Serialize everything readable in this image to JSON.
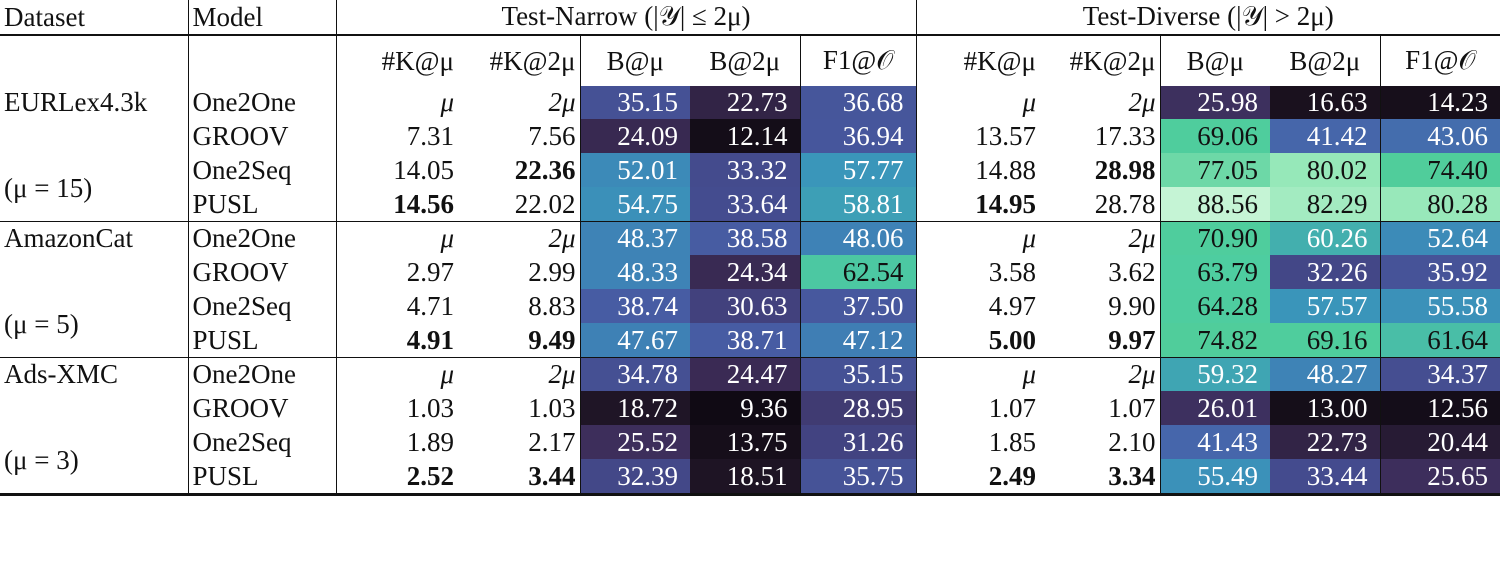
{
  "header": {
    "dataset": "Dataset",
    "model": "Model",
    "group_narrow": "Test-Narrow (|𝒴| ≤ 2μ)",
    "group_diverse": "Test-Diverse (|𝒴| > 2μ)",
    "columns": [
      "#K@μ",
      "#K@2μ",
      "B@μ",
      "B@2μ",
      "F1@𝒪",
      "#K@μ",
      "#K@2μ",
      "B@μ",
      "B@2μ",
      "F1@𝒪"
    ]
  },
  "datasets": [
    {
      "name": "EURLex4.3k",
      "mu": "(μ = 15)",
      "rows": [
        {
          "model": "One2One",
          "cells": [
            "μ",
            "2μ",
            "35.15",
            "22.73",
            "36.68",
            "μ",
            "2μ",
            "25.98",
            "16.63",
            "14.23"
          ]
        },
        {
          "model": "GROOV",
          "cells": [
            "7.31",
            "7.56",
            "24.09",
            "12.14",
            "36.94",
            "13.57",
            "17.33",
            "69.06",
            "41.42",
            "43.06"
          ]
        },
        {
          "model": "One2Seq",
          "cells": [
            "14.05",
            "22.36",
            "52.01",
            "33.32",
            "57.77",
            "14.88",
            "28.98",
            "77.05",
            "80.02",
            "74.40"
          ]
        },
        {
          "model": "PUSL",
          "cells": [
            "14.56",
            "22.02",
            "54.75",
            "33.64",
            "58.81",
            "14.95",
            "28.78",
            "88.56",
            "82.29",
            "80.28"
          ]
        }
      ]
    },
    {
      "name": "AmazonCat",
      "mu": "(μ = 5)",
      "rows": [
        {
          "model": "One2One",
          "cells": [
            "μ",
            "2μ",
            "48.37",
            "38.58",
            "48.06",
            "μ",
            "2μ",
            "70.90",
            "60.26",
            "52.64"
          ]
        },
        {
          "model": "GROOV",
          "cells": [
            "2.97",
            "2.99",
            "48.33",
            "24.34",
            "62.54",
            "3.58",
            "3.62",
            "63.79",
            "32.26",
            "35.92"
          ]
        },
        {
          "model": "One2Seq",
          "cells": [
            "4.71",
            "8.83",
            "38.74",
            "30.63",
            "37.50",
            "4.97",
            "9.90",
            "64.28",
            "57.57",
            "55.58"
          ]
        },
        {
          "model": "PUSL",
          "cells": [
            "4.91",
            "9.49",
            "47.67",
            "38.71",
            "47.12",
            "5.00",
            "9.97",
            "74.82",
            "69.16",
            "61.64"
          ]
        }
      ]
    },
    {
      "name": "Ads-XMC",
      "mu": "(μ = 3)",
      "rows": [
        {
          "model": "One2One",
          "cells": [
            "μ",
            "2μ",
            "34.78",
            "24.47",
            "35.15",
            "μ",
            "2μ",
            "59.32",
            "48.27",
            "34.37"
          ]
        },
        {
          "model": "GROOV",
          "cells": [
            "1.03",
            "1.03",
            "18.72",
            "9.36",
            "28.95",
            "1.07",
            "1.07",
            "26.01",
            "13.00",
            "12.56"
          ]
        },
        {
          "model": "One2Seq",
          "cells": [
            "1.89",
            "2.17",
            "25.52",
            "13.75",
            "31.26",
            "1.85",
            "2.10",
            "41.43",
            "22.73",
            "20.44"
          ]
        },
        {
          "model": "PUSL",
          "cells": [
            "2.52",
            "3.44",
            "32.39",
            "18.51",
            "35.75",
            "2.49",
            "3.34",
            "55.49",
            "33.44",
            "25.65"
          ]
        }
      ]
    }
  ],
  "bold_cells": [
    [
      0,
      2,
      1
    ],
    [
      0,
      3,
      0
    ],
    [
      0,
      2,
      6
    ],
    [
      0,
      3,
      5
    ],
    [
      1,
      3,
      0
    ],
    [
      1,
      3,
      1
    ],
    [
      1,
      3,
      5
    ],
    [
      1,
      3,
      6
    ],
    [
      2,
      3,
      0
    ],
    [
      2,
      3,
      1
    ],
    [
      2,
      3,
      5
    ],
    [
      2,
      3,
      6
    ]
  ],
  "colors": {
    "heat_low": "#0f0a14",
    "heat_mid_purple": "#3d2f5c",
    "heat_blue": "#4a63a8",
    "heat_teal": "#3f95b5",
    "heat_green": "#4fcf9d",
    "heat_high": "#c9f5d8"
  }
}
